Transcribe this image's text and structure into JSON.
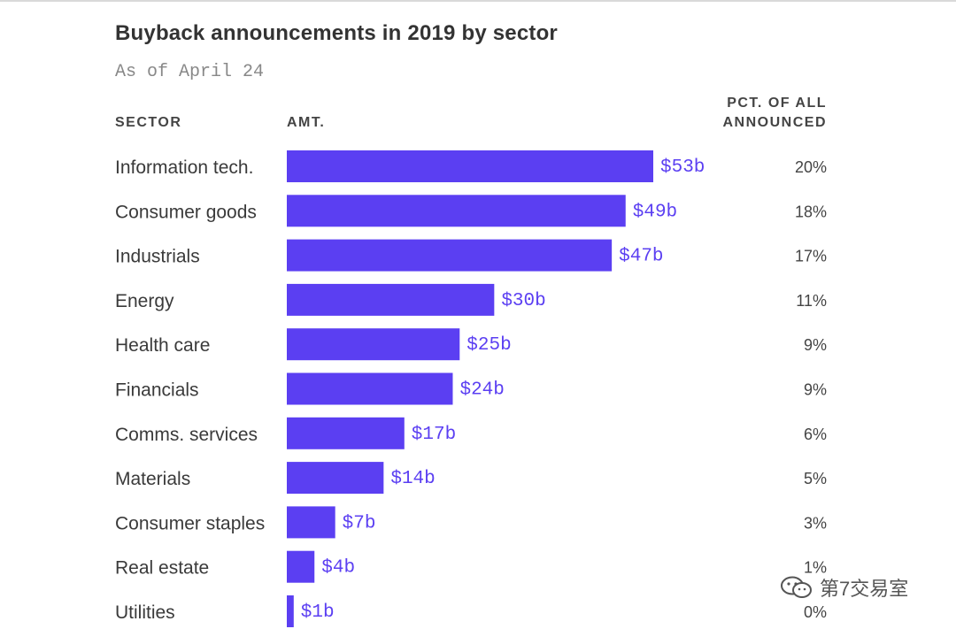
{
  "title": "Buyback announcements in 2019 by sector",
  "subtitle": "As of April 24",
  "headers": {
    "sector": "SECTOR",
    "amount": "AMT.",
    "pct_line1": "PCT. OF ALL",
    "pct_line2": "ANNOUNCED"
  },
  "watermark": "第7交易室",
  "colors": {
    "bar": "#5b3ff2"
  },
  "chart_data": {
    "type": "bar",
    "orientation": "horizontal",
    "title": "Buyback announcements in 2019 by sector",
    "subtitle": "As of April 24",
    "categories": [
      "Information tech.",
      "Consumer goods",
      "Industrials",
      "Energy",
      "Health care",
      "Financials",
      "Comms. services",
      "Materials",
      "Consumer staples",
      "Real estate",
      "Utilities"
    ],
    "values": [
      53,
      49,
      47,
      30,
      25,
      24,
      17,
      14,
      7,
      4,
      1
    ],
    "value_labels": [
      "$53b",
      "$49b",
      "$47b",
      "$30b",
      "$25b",
      "$24b",
      "$17b",
      "$14b",
      "$7b",
      "$4b",
      "$1b"
    ],
    "pct_labels": [
      "20%",
      "18%",
      "17%",
      "11%",
      "9%",
      "9%",
      "6%",
      "5%",
      "3%",
      "1%",
      "0%"
    ],
    "unit": "billion USD",
    "xlim": [
      0,
      53
    ],
    "grid": false
  }
}
